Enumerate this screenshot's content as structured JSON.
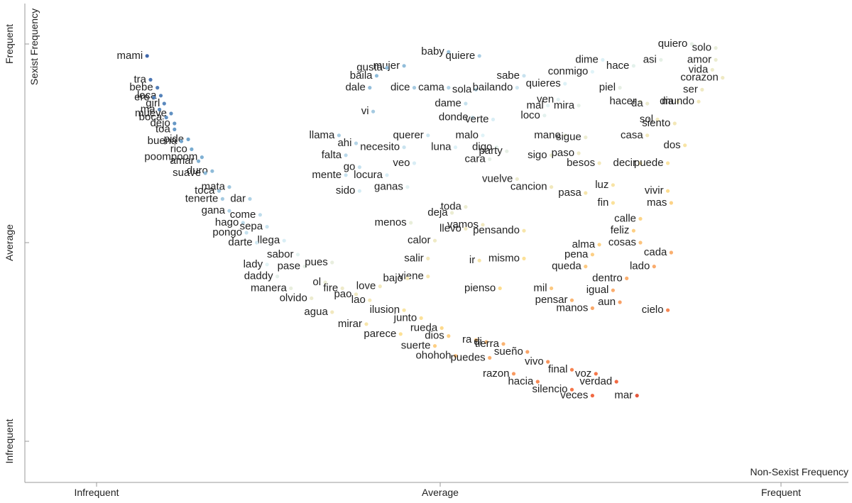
{
  "chart_data": {
    "type": "scatter",
    "xlabel": "Non-Sexist Frequency",
    "ylabel": "Sexist Frequency",
    "x_ticks": [
      "Infrequent",
      "Average",
      "Frequent"
    ],
    "y_ticks": [
      "Frequent",
      "Average",
      "Infrequent"
    ],
    "xlim": [
      0,
      1
    ],
    "ylim": [
      0,
      1
    ],
    "color_scale": [
      "#2c4f9e",
      "#74a9cf",
      "#e0f3f8",
      "#fee090",
      "#f46d43",
      "#a50026"
    ],
    "points": [
      {
        "label": "mami",
        "x": 0.08,
        "y": 0.97
      },
      {
        "label": "tra",
        "x": 0.085,
        "y": 0.91
      },
      {
        "label": "bebe",
        "x": 0.095,
        "y": 0.89
      },
      {
        "label": "loca",
        "x": 0.1,
        "y": 0.87
      },
      {
        "label": "ere",
        "x": 0.09,
        "y": 0.865
      },
      {
        "label": "girl",
        "x": 0.105,
        "y": 0.85
      },
      {
        "label": "ma",
        "x": 0.098,
        "y": 0.835
      },
      {
        "label": "mueve",
        "x": 0.115,
        "y": 0.825
      },
      {
        "label": "boca",
        "x": 0.108,
        "y": 0.815
      },
      {
        "label": "dejo",
        "x": 0.12,
        "y": 0.8
      },
      {
        "label": "toa",
        "x": 0.12,
        "y": 0.785
      },
      {
        "label": "pide",
        "x": 0.14,
        "y": 0.76
      },
      {
        "label": "buena",
        "x": 0.13,
        "y": 0.755
      },
      {
        "label": "rico",
        "x": 0.145,
        "y": 0.735
      },
      {
        "label": "poompoom",
        "x": 0.16,
        "y": 0.715
      },
      {
        "label": "amar",
        "x": 0.155,
        "y": 0.705
      },
      {
        "label": "duro",
        "x": 0.175,
        "y": 0.68
      },
      {
        "label": "suave",
        "x": 0.165,
        "y": 0.675
      },
      {
        "label": "mata",
        "x": 0.2,
        "y": 0.64
      },
      {
        "label": "toca",
        "x": 0.185,
        "y": 0.63
      },
      {
        "label": "tenerte",
        "x": 0.19,
        "y": 0.61
      },
      {
        "label": "dar",
        "x": 0.23,
        "y": 0.61
      },
      {
        "label": "gana",
        "x": 0.2,
        "y": 0.58
      },
      {
        "label": "come",
        "x": 0.245,
        "y": 0.57
      },
      {
        "label": "hago",
        "x": 0.22,
        "y": 0.55
      },
      {
        "label": "sepa",
        "x": 0.255,
        "y": 0.54
      },
      {
        "label": "pongo",
        "x": 0.225,
        "y": 0.525
      },
      {
        "label": "llega",
        "x": 0.28,
        "y": 0.505
      },
      {
        "label": "darte",
        "x": 0.24,
        "y": 0.5
      },
      {
        "label": "sabor",
        "x": 0.3,
        "y": 0.47
      },
      {
        "label": "lady",
        "x": 0.255,
        "y": 0.445
      },
      {
        "label": "pase",
        "x": 0.31,
        "y": 0.44
      },
      {
        "label": "pues",
        "x": 0.35,
        "y": 0.45
      },
      {
        "label": "daddy",
        "x": 0.27,
        "y": 0.415
      },
      {
        "label": "ol",
        "x": 0.34,
        "y": 0.4
      },
      {
        "label": "manera",
        "x": 0.29,
        "y": 0.385
      },
      {
        "label": "fire",
        "x": 0.365,
        "y": 0.385
      },
      {
        "label": "pao",
        "x": 0.385,
        "y": 0.37
      },
      {
        "label": "olvido",
        "x": 0.32,
        "y": 0.36
      },
      {
        "label": "lao",
        "x": 0.405,
        "y": 0.355
      },
      {
        "label": "ilusion",
        "x": 0.455,
        "y": 0.33
      },
      {
        "label": "agua",
        "x": 0.35,
        "y": 0.325
      },
      {
        "label": "junto",
        "x": 0.48,
        "y": 0.31
      },
      {
        "label": "mirar",
        "x": 0.4,
        "y": 0.295
      },
      {
        "label": "rueda",
        "x": 0.51,
        "y": 0.285
      },
      {
        "label": "dios",
        "x": 0.52,
        "y": 0.265
      },
      {
        "label": "parece",
        "x": 0.45,
        "y": 0.27
      },
      {
        "label": "ra",
        "x": 0.56,
        "y": 0.255
      },
      {
        "label": "di",
        "x": 0.575,
        "y": 0.25
      },
      {
        "label": "tierra",
        "x": 0.6,
        "y": 0.245
      },
      {
        "label": "suerte",
        "x": 0.5,
        "y": 0.24
      },
      {
        "label": "sueño",
        "x": 0.635,
        "y": 0.225
      },
      {
        "label": "ohohoh",
        "x": 0.53,
        "y": 0.215
      },
      {
        "label": "puedes",
        "x": 0.58,
        "y": 0.21
      },
      {
        "label": "vivo",
        "x": 0.665,
        "y": 0.2
      },
      {
        "label": "final",
        "x": 0.7,
        "y": 0.18
      },
      {
        "label": "razon",
        "x": 0.615,
        "y": 0.17
      },
      {
        "label": "voz",
        "x": 0.735,
        "y": 0.17
      },
      {
        "label": "verdad",
        "x": 0.765,
        "y": 0.15
      },
      {
        "label": "hacia",
        "x": 0.65,
        "y": 0.15
      },
      {
        "label": "silencio",
        "x": 0.7,
        "y": 0.13
      },
      {
        "label": "veces",
        "x": 0.73,
        "y": 0.115
      },
      {
        "label": "mar",
        "x": 0.795,
        "y": 0.115
      },
      {
        "label": "baby",
        "x": 0.52,
        "y": 0.98
      },
      {
        "label": "quiere",
        "x": 0.565,
        "y": 0.97
      },
      {
        "label": "mujer",
        "x": 0.455,
        "y": 0.945
      },
      {
        "label": "gusta",
        "x": 0.43,
        "y": 0.94
      },
      {
        "label": "baila",
        "x": 0.415,
        "y": 0.92
      },
      {
        "label": "dale",
        "x": 0.405,
        "y": 0.89
      },
      {
        "label": "dice",
        "x": 0.47,
        "y": 0.89
      },
      {
        "label": "cama",
        "x": 0.52,
        "y": 0.89
      },
      {
        "label": "sola",
        "x": 0.56,
        "y": 0.885
      },
      {
        "label": "bailando",
        "x": 0.62,
        "y": 0.89
      },
      {
        "label": "sabe",
        "x": 0.63,
        "y": 0.92
      },
      {
        "label": "dame",
        "x": 0.545,
        "y": 0.85
      },
      {
        "label": "vi",
        "x": 0.41,
        "y": 0.83
      },
      {
        "label": "donde",
        "x": 0.555,
        "y": 0.815
      },
      {
        "label": "verte",
        "x": 0.585,
        "y": 0.81
      },
      {
        "label": "llama",
        "x": 0.36,
        "y": 0.77
      },
      {
        "label": "malo",
        "x": 0.57,
        "y": 0.77
      },
      {
        "label": "ahi",
        "x": 0.385,
        "y": 0.75
      },
      {
        "label": "querer",
        "x": 0.49,
        "y": 0.77
      },
      {
        "label": "necesito",
        "x": 0.455,
        "y": 0.74
      },
      {
        "label": "luna",
        "x": 0.53,
        "y": 0.74
      },
      {
        "label": "digo",
        "x": 0.59,
        "y": 0.74
      },
      {
        "label": "falta",
        "x": 0.37,
        "y": 0.72
      },
      {
        "label": "go",
        "x": 0.39,
        "y": 0.69
      },
      {
        "label": "cara",
        "x": 0.58,
        "y": 0.71
      },
      {
        "label": "veo",
        "x": 0.47,
        "y": 0.7
      },
      {
        "label": "mente",
        "x": 0.37,
        "y": 0.67
      },
      {
        "label": "locura",
        "x": 0.43,
        "y": 0.67
      },
      {
        "label": "sido",
        "x": 0.39,
        "y": 0.63
      },
      {
        "label": "ganas",
        "x": 0.46,
        "y": 0.64
      },
      {
        "label": "dime",
        "x": 0.745,
        "y": 0.96
      },
      {
        "label": "conmigo",
        "x": 0.73,
        "y": 0.93
      },
      {
        "label": "hace",
        "x": 0.79,
        "y": 0.945
      },
      {
        "label": "asi",
        "x": 0.83,
        "y": 0.96
      },
      {
        "label": "quiero",
        "x": 0.875,
        "y": 1.0
      },
      {
        "label": "solo",
        "x": 0.91,
        "y": 0.99
      },
      {
        "label": "amor",
        "x": 0.91,
        "y": 0.96
      },
      {
        "label": "vida",
        "x": 0.905,
        "y": 0.935
      },
      {
        "label": "corazon",
        "x": 0.92,
        "y": 0.915
      },
      {
        "label": "quieres",
        "x": 0.69,
        "y": 0.9
      },
      {
        "label": "piel",
        "x": 0.77,
        "y": 0.89
      },
      {
        "label": "ser",
        "x": 0.89,
        "y": 0.885
      },
      {
        "label": "mal",
        "x": 0.665,
        "y": 0.845
      },
      {
        "label": "ven",
        "x": 0.68,
        "y": 0.86
      },
      {
        "label": "mira",
        "x": 0.71,
        "y": 0.845
      },
      {
        "label": "hacer",
        "x": 0.8,
        "y": 0.855
      },
      {
        "label": "da",
        "x": 0.81,
        "y": 0.85
      },
      {
        "label": "dia",
        "x": 0.855,
        "y": 0.855
      },
      {
        "label": "mundo",
        "x": 0.885,
        "y": 0.855
      },
      {
        "label": "loco",
        "x": 0.66,
        "y": 0.82
      },
      {
        "label": "sol",
        "x": 0.825,
        "y": 0.81
      },
      {
        "label": "siento",
        "x": 0.85,
        "y": 0.8
      },
      {
        "label": "mano",
        "x": 0.69,
        "y": 0.77
      },
      {
        "label": "sigue",
        "x": 0.72,
        "y": 0.765
      },
      {
        "label": "casa",
        "x": 0.81,
        "y": 0.77
      },
      {
        "label": "dos",
        "x": 0.865,
        "y": 0.745
      },
      {
        "label": "party",
        "x": 0.605,
        "y": 0.73
      },
      {
        "label": "sigo",
        "x": 0.67,
        "y": 0.72
      },
      {
        "label": "paso",
        "x": 0.71,
        "y": 0.725
      },
      {
        "label": "decir",
        "x": 0.8,
        "y": 0.7
      },
      {
        "label": "puede",
        "x": 0.84,
        "y": 0.7
      },
      {
        "label": "besos",
        "x": 0.74,
        "y": 0.7
      },
      {
        "label": "vuelve",
        "x": 0.62,
        "y": 0.66
      },
      {
        "label": "cancion",
        "x": 0.67,
        "y": 0.64
      },
      {
        "label": "luz",
        "x": 0.76,
        "y": 0.645
      },
      {
        "label": "pasa",
        "x": 0.72,
        "y": 0.625
      },
      {
        "label": "vivir",
        "x": 0.84,
        "y": 0.63
      },
      {
        "label": "fin",
        "x": 0.76,
        "y": 0.6
      },
      {
        "label": "mas",
        "x": 0.845,
        "y": 0.6
      },
      {
        "label": "toda",
        "x": 0.545,
        "y": 0.59
      },
      {
        "label": "deja",
        "x": 0.525,
        "y": 0.575
      },
      {
        "label": "vamos",
        "x": 0.57,
        "y": 0.545
      },
      {
        "label": "calle",
        "x": 0.8,
        "y": 0.56
      },
      {
        "label": "menos",
        "x": 0.465,
        "y": 0.55
      },
      {
        "label": "llevo",
        "x": 0.545,
        "y": 0.535
      },
      {
        "label": "pensando",
        "x": 0.63,
        "y": 0.53
      },
      {
        "label": "feliz",
        "x": 0.79,
        "y": 0.53
      },
      {
        "label": "cosas",
        "x": 0.8,
        "y": 0.5
      },
      {
        "label": "calor",
        "x": 0.5,
        "y": 0.505
      },
      {
        "label": "alma",
        "x": 0.74,
        "y": 0.495
      },
      {
        "label": "salir",
        "x": 0.49,
        "y": 0.46
      },
      {
        "label": "mismo",
        "x": 0.63,
        "y": 0.46
      },
      {
        "label": "pena",
        "x": 0.73,
        "y": 0.47
      },
      {
        "label": "cada",
        "x": 0.845,
        "y": 0.475
      },
      {
        "label": "ir",
        "x": 0.565,
        "y": 0.455
      },
      {
        "label": "queda",
        "x": 0.72,
        "y": 0.44
      },
      {
        "label": "lado",
        "x": 0.82,
        "y": 0.44
      },
      {
        "label": "viene",
        "x": 0.49,
        "y": 0.415
      },
      {
        "label": "bajo",
        "x": 0.46,
        "y": 0.41
      },
      {
        "label": "love",
        "x": 0.42,
        "y": 0.39
      },
      {
        "label": "dentro",
        "x": 0.78,
        "y": 0.41
      },
      {
        "label": "pienso",
        "x": 0.595,
        "y": 0.385
      },
      {
        "label": "mil",
        "x": 0.67,
        "y": 0.385
      },
      {
        "label": "igual",
        "x": 0.76,
        "y": 0.38
      },
      {
        "label": "pensar",
        "x": 0.7,
        "y": 0.355
      },
      {
        "label": "aun",
        "x": 0.77,
        "y": 0.35
      },
      {
        "label": "manos",
        "x": 0.73,
        "y": 0.335
      },
      {
        "label": "cielo",
        "x": 0.84,
        "y": 0.33
      }
    ]
  }
}
